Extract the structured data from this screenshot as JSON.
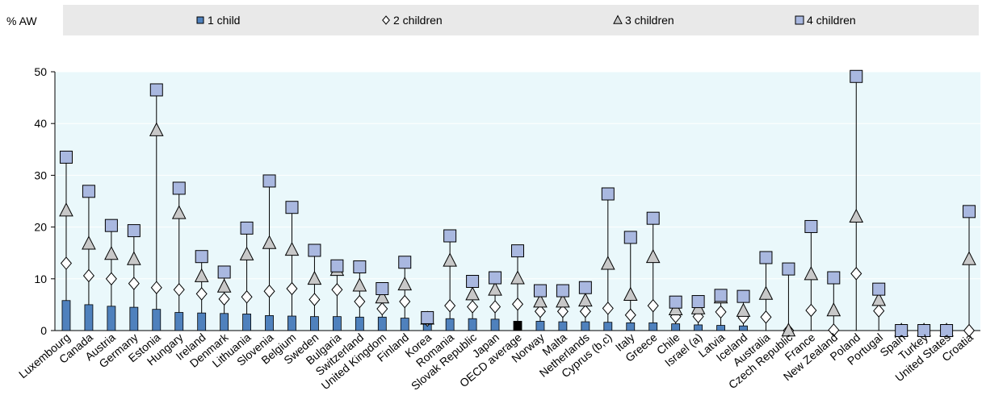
{
  "chart_data": {
    "type": "bar",
    "ylabel": "% AW",
    "ylim": [
      0,
      50
    ],
    "yticks": [
      0,
      10,
      20,
      30,
      40,
      50
    ],
    "legend_placement": "top",
    "grid": true,
    "colors": {
      "bar": "#4f81bd",
      "highlight_bar": "#000000",
      "square_marker": "#a9b8e0",
      "triangle_marker": "#c8c8c8",
      "diamond_marker": "#ffffff",
      "plot_background": "#eaf8fb",
      "legend_background": "#e9e9e9"
    },
    "categories": [
      "Luxembourg",
      "Canada",
      "Austria",
      "Germany",
      "Estonia",
      "Hungary",
      "Ireland",
      "Denmark",
      "Lithuania",
      "Slovenia",
      "Belgium",
      "Sweden",
      "Bulgaria",
      "Switzerland",
      "United Kingdom",
      "Finland",
      "Korea",
      "Romania",
      "Slovak Republic",
      "Japan",
      "OECD average",
      "Norway",
      "Malta",
      "Netherlands",
      "Cyprus (b,c)",
      "Italy",
      "Greece",
      "Chile",
      "Israel (a)",
      "Latvia",
      "Iceland",
      "Australia",
      "Czech Republic",
      "France",
      "New Zealand",
      "Poland",
      "Portugal",
      "Spain",
      "Turkey",
      "United States",
      "Croatia"
    ],
    "highlight_category": "OECD average",
    "series": [
      {
        "name": "1 child",
        "marker": "bar",
        "values": [
          5.8,
          5.0,
          4.7,
          4.5,
          4.1,
          3.5,
          3.4,
          3.3,
          3.2,
          2.9,
          2.8,
          2.7,
          2.7,
          2.6,
          2.6,
          2.4,
          2.3,
          2.3,
          2.3,
          2.2,
          1.8,
          1.8,
          1.7,
          1.7,
          1.6,
          1.5,
          1.5,
          1.3,
          1.1,
          1.0,
          0.9,
          0,
          0,
          0,
          0,
          0,
          0,
          0,
          0,
          0,
          0
        ]
      },
      {
        "name": "2 children",
        "marker": "diamond",
        "values": [
          13.0,
          10.6,
          10.0,
          9.1,
          8.3,
          7.9,
          7.1,
          6.1,
          6.5,
          7.6,
          8.1,
          6.0,
          7.9,
          5.6,
          4.2,
          5.6,
          2.0,
          4.8,
          4.6,
          4.6,
          5.1,
          3.7,
          3.7,
          3.7,
          4.3,
          3.0,
          4.8,
          2.7,
          2.7,
          3.6,
          2.5,
          2.6,
          0,
          3.9,
          0.1,
          11.0,
          3.8,
          0,
          0,
          0,
          0
        ]
      },
      {
        "name": "3 children",
        "marker": "triangle",
        "values": [
          23.2,
          16.8,
          14.8,
          13.8,
          38.7,
          22.7,
          10.5,
          8.5,
          14.7,
          16.9,
          15.6,
          10.0,
          11.7,
          8.7,
          6.4,
          8.9,
          2.3,
          13.5,
          7.0,
          7.9,
          10.1,
          5.6,
          5.6,
          5.8,
          12.9,
          6.9,
          14.2,
          4.1,
          4.3,
          6.4,
          3.8,
          7.1,
          0,
          10.9,
          3.9,
          22.0,
          5.9,
          0,
          0,
          0,
          13.8
        ]
      },
      {
        "name": "4 children",
        "marker": "square",
        "values": [
          33.5,
          26.9,
          20.3,
          19.3,
          46.5,
          27.5,
          14.3,
          11.3,
          19.8,
          28.9,
          23.8,
          15.5,
          12.5,
          12.3,
          8.1,
          13.2,
          2.5,
          18.3,
          9.5,
          10.2,
          15.4,
          7.7,
          7.7,
          8.3,
          26.4,
          18.0,
          21.7,
          5.5,
          5.6,
          6.8,
          6.6,
          14.1,
          11.9,
          20.1,
          10.2,
          49.1,
          8.0,
          0,
          0,
          0,
          23.0
        ]
      }
    ]
  }
}
